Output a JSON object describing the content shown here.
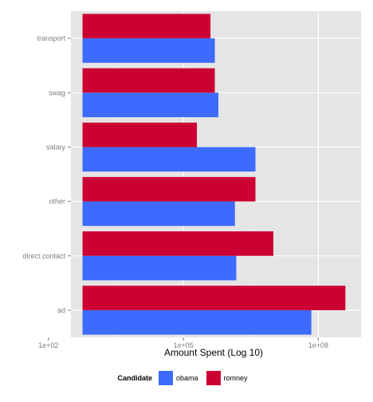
{
  "chart_data": {
    "type": "bar",
    "orientation": "horizontal",
    "categories": [
      "ad",
      "direct contact",
      "other",
      "salary",
      "swag",
      "transport"
    ],
    "series": [
      {
        "name": "obama",
        "color": "#3D6BFF",
        "values": [
          70000000,
          1500000,
          1400000,
          4000000,
          600000,
          500000
        ]
      },
      {
        "name": "romney",
        "color": "#CC0033",
        "values": [
          400000000,
          10000000,
          4000000,
          200000,
          500000,
          400000
        ]
      }
    ],
    "xlabel": "Amount Spent (Log 10)",
    "ylabel": "",
    "x_scale": "log10",
    "xlim": [
      2.5,
      8.95
    ],
    "x_ticks": [
      {
        "value": 100,
        "label": "1e+02"
      },
      {
        "value": 100000,
        "label": "1e+05"
      },
      {
        "value": 100000000,
        "label": "1e+08"
      }
    ],
    "grid": true,
    "legend": {
      "title": "Candidate",
      "position": "bottom"
    }
  }
}
